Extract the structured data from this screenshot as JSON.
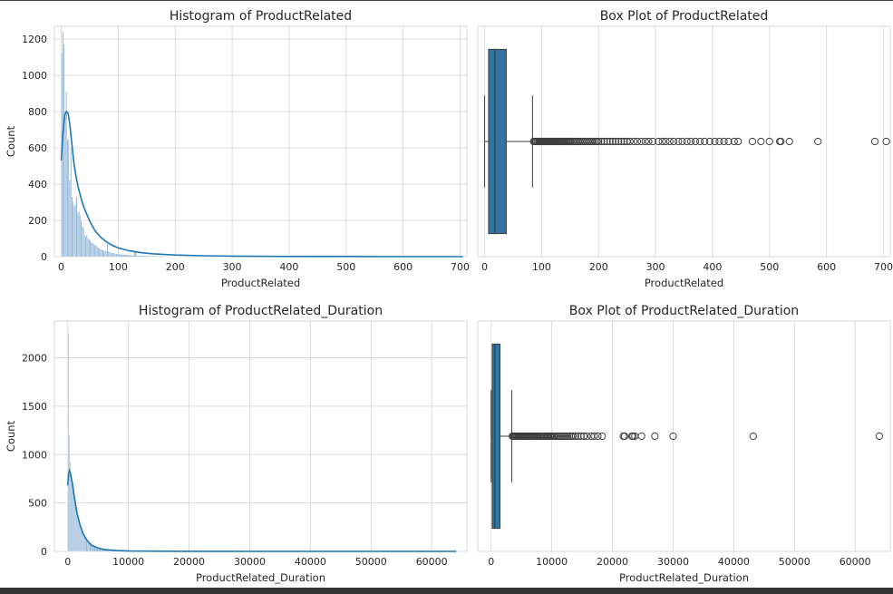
{
  "colors": {
    "hist_bar": "#8fb4d6",
    "kde_line": "#1f77b4",
    "box_fill": "#3274a1",
    "grid": "#dcdcdc",
    "frame": "#d8d8d8"
  },
  "chart_data": [
    {
      "type": "bar",
      "title": "Histogram of ProductRelated",
      "xlabel": "ProductRelated",
      "ylabel": "Count",
      "xlim": [
        -12,
        712
      ],
      "ylim": [
        0,
        1270
      ],
      "xticks": [
        "0",
        "100",
        "200",
        "300",
        "400",
        "500",
        "600",
        "700"
      ],
      "yticks": [
        "0",
        "200",
        "400",
        "600",
        "800",
        "1000",
        "1200"
      ],
      "bins": [
        [
          0,
          1120
        ],
        [
          2,
          1240
        ],
        [
          4,
          1170
        ],
        [
          6,
          800
        ],
        [
          8,
          910
        ],
        [
          10,
          640
        ],
        [
          12,
          650
        ],
        [
          14,
          420
        ],
        [
          16,
          600
        ],
        [
          18,
          330
        ],
        [
          20,
          300
        ],
        [
          22,
          280
        ],
        [
          24,
          290
        ],
        [
          26,
          330
        ],
        [
          28,
          240
        ],
        [
          30,
          250
        ],
        [
          32,
          230
        ],
        [
          34,
          200
        ],
        [
          36,
          170
        ],
        [
          38,
          160
        ],
        [
          40,
          120
        ],
        [
          42,
          110
        ],
        [
          44,
          120
        ],
        [
          46,
          100
        ],
        [
          48,
          95
        ],
        [
          50,
          90
        ],
        [
          52,
          80
        ],
        [
          54,
          75
        ],
        [
          56,
          70
        ],
        [
          58,
          62
        ],
        [
          60,
          65
        ],
        [
          62,
          55
        ],
        [
          64,
          50
        ],
        [
          66,
          45
        ],
        [
          68,
          42
        ],
        [
          70,
          40
        ],
        [
          72,
          36
        ],
        [
          74,
          34
        ],
        [
          76,
          32
        ],
        [
          78,
          30
        ],
        [
          80,
          70
        ],
        [
          82,
          28
        ],
        [
          84,
          25
        ],
        [
          86,
          24
        ],
        [
          88,
          22
        ],
        [
          90,
          20
        ],
        [
          92,
          19
        ],
        [
          94,
          18
        ],
        [
          96,
          16
        ],
        [
          98,
          15
        ],
        [
          100,
          14
        ],
        [
          104,
          12
        ],
        [
          108,
          11
        ],
        [
          112,
          10
        ],
        [
          116,
          9
        ],
        [
          120,
          8
        ],
        [
          124,
          7
        ],
        [
          128,
          30
        ],
        [
          132,
          6
        ],
        [
          136,
          5
        ],
        [
          140,
          5
        ],
        [
          150,
          4
        ],
        [
          160,
          3
        ],
        [
          170,
          3
        ],
        [
          180,
          2
        ],
        [
          190,
          2
        ],
        [
          200,
          2
        ],
        [
          220,
          1
        ],
        [
          240,
          1
        ],
        [
          260,
          1
        ]
      ],
      "kde": [
        [
          0,
          530
        ],
        [
          3,
          680
        ],
        [
          6,
          780
        ],
        [
          9,
          800
        ],
        [
          12,
          790
        ],
        [
          15,
          730
        ],
        [
          18,
          640
        ],
        [
          22,
          520
        ],
        [
          26,
          440
        ],
        [
          30,
          380
        ],
        [
          35,
          320
        ],
        [
          40,
          270
        ],
        [
          50,
          195
        ],
        [
          60,
          140
        ],
        [
          70,
          105
        ],
        [
          80,
          80
        ],
        [
          90,
          62
        ],
        [
          100,
          48
        ],
        [
          120,
          32
        ],
        [
          140,
          22
        ],
        [
          160,
          16
        ],
        [
          180,
          12
        ],
        [
          200,
          9
        ],
        [
          250,
          5
        ],
        [
          300,
          3
        ],
        [
          400,
          1
        ],
        [
          500,
          1
        ],
        [
          600,
          0
        ],
        [
          705,
          0
        ]
      ]
    },
    {
      "type": "box",
      "title": "Box Plot of ProductRelated",
      "xlabel": "ProductRelated",
      "xlim": [
        -12,
        712
      ],
      "xticks": [
        "0",
        "100",
        "200",
        "300",
        "400",
        "500",
        "600",
        "700"
      ],
      "box": {
        "whisker_low": 0,
        "q1": 7,
        "median": 18,
        "q3": 38,
        "whisker_high": 84
      },
      "outliers": [
        86,
        88,
        90,
        92,
        94,
        96,
        98,
        100,
        102,
        104,
        106,
        108,
        110,
        112,
        114,
        116,
        118,
        120,
        122,
        124,
        126,
        128,
        130,
        132,
        134,
        136,
        138,
        140,
        142,
        144,
        146,
        148,
        150,
        152,
        155,
        158,
        161,
        164,
        167,
        170,
        173,
        176,
        179,
        182,
        185,
        188,
        191,
        194,
        197,
        200,
        205,
        210,
        215,
        220,
        225,
        230,
        235,
        240,
        245,
        250,
        255,
        262,
        268,
        275,
        282,
        288,
        295,
        305,
        312,
        318,
        325,
        332,
        340,
        347,
        355,
        362,
        370,
        378,
        386,
        395,
        404,
        412,
        420,
        428,
        438,
        445,
        470,
        485,
        500,
        518,
        520,
        535,
        585,
        685,
        705
      ]
    },
    {
      "type": "bar",
      "title": "Histogram of ProductRelated_Duration",
      "xlabel": "ProductRelated_Duration",
      "ylabel": "Count",
      "xlim": [
        -2200,
        65800
      ],
      "ylim": [
        0,
        2380
      ],
      "xticks": [
        "0",
        "10000",
        "20000",
        "30000",
        "40000",
        "50000",
        "60000"
      ],
      "yticks": [
        "0",
        "500",
        "1000",
        "1500",
        "2000"
      ],
      "bins": [
        [
          0,
          2260
        ],
        [
          150,
          1200
        ],
        [
          300,
          930
        ],
        [
          450,
          800
        ],
        [
          600,
          700
        ],
        [
          750,
          640
        ],
        [
          900,
          580
        ],
        [
          1050,
          520
        ],
        [
          1200,
          470
        ],
        [
          1350,
          420
        ],
        [
          1500,
          380
        ],
        [
          1650,
          340
        ],
        [
          1800,
          300
        ],
        [
          1950,
          270
        ],
        [
          2100,
          240
        ],
        [
          2250,
          215
        ],
        [
          2400,
          190
        ],
        [
          2550,
          170
        ],
        [
          2700,
          150
        ],
        [
          2850,
          135
        ],
        [
          3000,
          120
        ],
        [
          3200,
          105
        ],
        [
          3400,
          90
        ],
        [
          3600,
          78
        ],
        [
          3800,
          68
        ],
        [
          4000,
          58
        ],
        [
          4300,
          48
        ],
        [
          4600,
          40
        ],
        [
          5000,
          32
        ],
        [
          5500,
          25
        ],
        [
          6000,
          20
        ],
        [
          6500,
          15
        ],
        [
          7000,
          11
        ],
        [
          8000,
          8
        ],
        [
          9000,
          6
        ],
        [
          10000,
          4
        ],
        [
          12000,
          3
        ],
        [
          14000,
          2
        ],
        [
          16000,
          2
        ],
        [
          20000,
          1
        ]
      ],
      "kde": [
        [
          0,
          680
        ],
        [
          150,
          800
        ],
        [
          300,
          835
        ],
        [
          450,
          810
        ],
        [
          600,
          760
        ],
        [
          800,
          690
        ],
        [
          1000,
          600
        ],
        [
          1300,
          480
        ],
        [
          1600,
          380
        ],
        [
          2000,
          280
        ],
        [
          2500,
          190
        ],
        [
          3000,
          130
        ],
        [
          3500,
          90
        ],
        [
          4000,
          62
        ],
        [
          5000,
          35
        ],
        [
          6000,
          20
        ],
        [
          8000,
          8
        ],
        [
          10000,
          4
        ],
        [
          15000,
          2
        ],
        [
          20000,
          1
        ],
        [
          30000,
          0
        ],
        [
          40000,
          0
        ],
        [
          50000,
          0
        ],
        [
          64000,
          0
        ]
      ]
    },
    {
      "type": "box",
      "title": "Box Plot of ProductRelated_Duration",
      "xlabel": "ProductRelated_Duration",
      "xlim": [
        -2200,
        65800
      ],
      "xticks": [
        "0",
        "10000",
        "20000",
        "30000",
        "40000",
        "50000",
        "60000"
      ],
      "box": {
        "whisker_low": 0,
        "q1": 185,
        "median": 600,
        "q3": 1465,
        "whisker_high": 3400
      },
      "outliers": [
        3500,
        3650,
        3800,
        3950,
        4100,
        4250,
        4400,
        4550,
        4700,
        4850,
        5000,
        5150,
        5300,
        5450,
        5600,
        5750,
        5900,
        6050,
        6200,
        6350,
        6500,
        6650,
        6800,
        6950,
        7100,
        7250,
        7400,
        7550,
        7700,
        7900,
        8100,
        8300,
        8500,
        8700,
        8900,
        9100,
        9300,
        9500,
        9700,
        9900,
        10100,
        10300,
        10500,
        10800,
        11100,
        11400,
        11700,
        12000,
        12300,
        12600,
        12900,
        13200,
        13500,
        13900,
        14300,
        14800,
        15300,
        15800,
        16500,
        17000,
        17600,
        18300,
        21800,
        22000,
        23200,
        23400,
        23700,
        24800,
        27000,
        30000,
        43200,
        64000
      ]
    }
  ]
}
